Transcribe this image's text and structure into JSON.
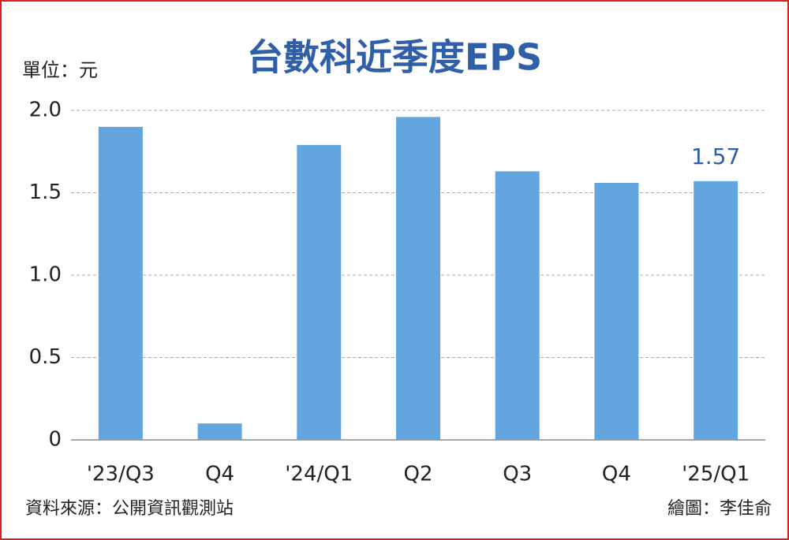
{
  "chart_data": {
    "type": "bar",
    "title": "台數科近季度EPS",
    "unit_label": "單位：元",
    "source": "資料來源：公開資訊觀測站",
    "credit": "繪圖：李佳俞",
    "categories": [
      "'23/Q3",
      "Q4",
      "'24/Q1",
      "Q2",
      "Q3",
      "Q4",
      "'25/Q1"
    ],
    "values": [
      1.9,
      0.1,
      1.79,
      1.96,
      1.63,
      1.56,
      1.57
    ],
    "value_labels": [
      null,
      null,
      null,
      null,
      null,
      null,
      "1.57"
    ],
    "color": "#63a6df",
    "ylim": [
      0,
      2
    ],
    "yticks": [
      0,
      0.5,
      {
        "value": 1,
        "label": "1.0"
      },
      1.5,
      {
        "value": 2,
        "label": "2.0"
      }
    ],
    "grid": true
  }
}
